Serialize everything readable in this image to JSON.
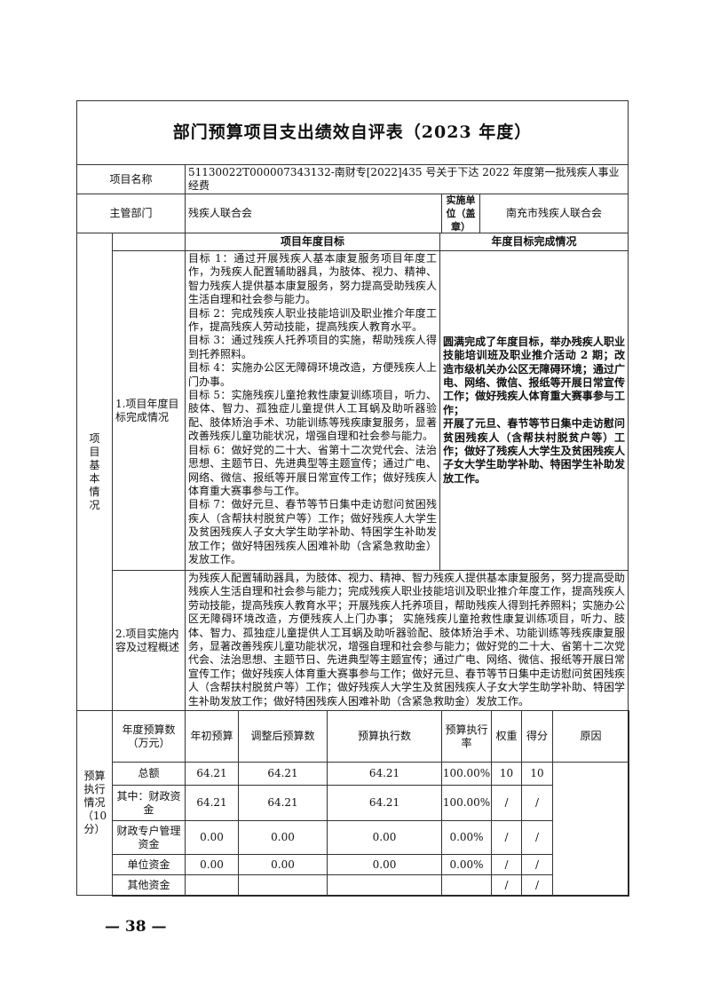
{
  "title": "部门预算项目支出绩效自评表（2023 年度）",
  "project_name_label": "项目名称",
  "project_name": "51130022T000007343132-南财专[2022]435 号关于下达 2022 年度第一批残疾人事业经费",
  "dept_label": "主管部门",
  "dept": "残疾人联合会",
  "impl_unit_label": "实施单位（盖章）",
  "impl_unit": "南充市残疾人联合会",
  "basic_info_label": "项目基本情况",
  "goals": {
    "label": "1.项目年度目标完成情况",
    "col_goal_header": "项目年度目标",
    "col_done_header": "年度目标完成情况",
    "goal_text": "目标 1：通过开展残疾人基本康复服务项目年度工作，为残疾人配置辅助器具，为肢体、视力、精神、智力残疾人提供基本康复服务，努力提高受助残疾人生活自理和社会参与能力。\n目标 2：完成残疾人职业技能培训及职业推介年度工作，提高残疾人劳动技能，提高残疾人教育水平。\n目标 3：通过残疾人托养项目的实施，帮助残疾人得到托养照料。\n目标 4：实施办公区无障碍环境改造，方便残疾人上门办事。\n目标 5：实施残疾儿童抢救性康复训练项目，听力、肢体、智力、孤独症儿童提供人工耳蜗及助听器验配、肢体矫治手术、功能训练等残疾康复服务，显著改善残疾儿童功能状况，增强自理和社会参与能力。\n目标 6：做好党的二十大、省第十二次党代会、法治思想、主题节日、先进典型等主题宣传；通过广电、网络、微信、报纸等开展日常宣传工作；做好残疾人体育重大赛事参与工作。\n目标 7：做好元旦、春节等节日集中走访慰问贫困残疾人（含帮扶村脱贫户等）工作；做好残疾人大学生及贫困残疾人子女大学生助学补助、特困学生补助发放工作；做好特困残疾人困难补助（含紧急救助金）发放工作。",
    "done_text": "圆满完成了年度目标，举办残疾人职业技能培训班及职业推介活动 2 期；改造市级机关办公区无障碍环境；通过广电、网络、微信、报纸等开展日常宣传工作；做好残疾人体育重大赛事参与工作；\n开展了元旦、春节等节日集中走访慰问贫困残疾人（含帮扶村脱贫户等）工作；做好了残疾人大学生及贫困残疾人子女大学生助学补助、特困学生补助发放工作。"
  },
  "implementation": {
    "label": "2.项目实施内容及过程概述",
    "text": "为残疾人配置辅助器具，为肢体、视力、精神、智力残疾人提供基本康复服务，努力提高受助残疾人生活自理和社会参与能力；完成残疾人职业技能培训及职业推介年度工作，提高残疾人劳动技能，提高残疾人教育水平；开展残疾人托养项目，帮助残疾人得到托养照料；实施办公区无障碍环境改造，方便残疾人上门办事； 实施残疾儿童抢救性康复训练项目，听力、肢体、智力、孤独症儿童提供人工耳蜗及助听器验配、肢体矫治手术、功能训练等残疾康复服务，显著改善残疾儿童功能状况，增强自理和社会参与能力；做好党的二十大、省第十二次党代会、法治思想、主题节日、先进典型等主题宣传；通过广电、网络、微信、报纸等开展日常宣传工作；做好残疾人体育重大赛事参与工作；做好元旦、春节等节日集中走访慰问贫困残疾人（含帮扶村脱贫户等）工作；做好残疾人大学生及贫困残疾人子女大学生助学补助、特困学生补助发放工作；做好特困残疾人困难补助（含紧急救助金）发放工作。"
  },
  "budget": {
    "label": "预算执行情况（10分）",
    "headers": [
      "年度预算数（万元）",
      "年初预算",
      "调整后预算数",
      "预算执行数",
      "预算执行率",
      "权重",
      "得分",
      "原因"
    ],
    "rows": [
      [
        "总额",
        "64.21",
        "64.21",
        "64.21",
        "100.00%",
        "10",
        "10"
      ],
      [
        "其中：财政资金",
        "64.21",
        "64.21",
        "64.21",
        "100.00%",
        "/",
        "/"
      ],
      [
        "财政专户管理资金",
        "0.00",
        "0.00",
        "0.00",
        "0.00%",
        "/",
        "/"
      ],
      [
        "单位资金",
        "0.00",
        "0.00",
        "0.00",
        "0.00%",
        "/",
        "/"
      ],
      [
        "其他资金",
        "",
        "",
        "",
        "",
        "/",
        "/"
      ]
    ]
  },
  "page_number": "— 38 —"
}
